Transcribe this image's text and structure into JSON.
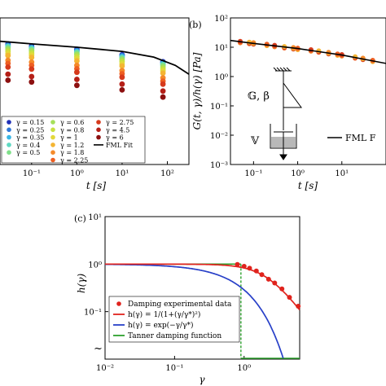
{
  "panels": {
    "a": {
      "xlabel": "t [s]",
      "xticks": [
        "10⁻¹",
        "10⁰",
        "10¹",
        "10²"
      ],
      "legend_col1": [
        "γ = 0.15",
        "γ = 0.25",
        "γ = 0.35",
        "γ = 0.4",
        "γ = 0.5"
      ],
      "legend_col2": [
        "γ = 0.6",
        "γ = 0.8",
        "γ = 1",
        "γ = 1.2",
        "γ = 1.8",
        "γ = 2.25"
      ],
      "legend_col3": [
        "γ = 2.75",
        "γ = 4.5",
        "γ = 6",
        "FML Fit"
      ]
    },
    "b": {
      "label": "(b)",
      "ylabel": "G(t, γ)/h(γ) [Pa]",
      "xlabel": "t [s]",
      "yticks": [
        "10²",
        "10¹",
        "10⁰",
        "10⁻¹",
        "10⁻²",
        "10⁻³"
      ],
      "xticks": [
        "10⁻¹",
        "10⁰",
        "10¹"
      ],
      "spring_label": "𝔾, β",
      "dashpot_label": "𝕍",
      "legend": "FML F"
    },
    "c": {
      "label": "(c)",
      "ylabel": "h(γ)",
      "xlabel": "γ",
      "yticks": [
        "10¹",
        "10⁰",
        "10⁻¹"
      ],
      "xticks": [
        "10⁻²",
        "10⁻¹",
        "10⁰"
      ],
      "legend": [
        "Damping experimental data",
        "h(γ) = 1/(1+(γ/γ*)²)",
        "h(γ) = exp(−γ/γ*)",
        "Tanner damping function"
      ]
    }
  },
  "chart_data": [
    {
      "type": "scatter",
      "panel": "a",
      "xlabel": "t [s]",
      "x_scale": "log",
      "xlim": [
        0.02,
        300
      ],
      "y_scale": "log",
      "ylim": [
        0.001,
        100
      ],
      "legend_placement": "bottom-left",
      "series": [
        {
          "name": "γ = 0.15",
          "color": "#2030b8",
          "x": [
            0.03,
            0.1,
            1,
            10,
            80
          ],
          "y": [
            13,
            11,
            8.5,
            5.5,
            3.2
          ]
        },
        {
          "name": "γ = 0.25",
          "color": "#2f78d8",
          "x": [
            0.03,
            0.1,
            1,
            10,
            80
          ],
          "y": [
            12,
            10,
            7.8,
            5.2,
            3.0
          ]
        },
        {
          "name": "γ = 0.35",
          "color": "#37b6e6",
          "x": [
            0.03,
            0.1,
            1,
            10,
            80
          ],
          "y": [
            11,
            9.5,
            7.2,
            4.8,
            2.8
          ]
        },
        {
          "name": "γ = 0.4",
          "color": "#5fd9c2",
          "x": [
            0.03,
            0.1,
            1,
            10,
            80
          ],
          "y": [
            10.5,
            9,
            6.8,
            4.5,
            2.6
          ]
        },
        {
          "name": "γ = 0.5",
          "color": "#7fe08a",
          "x": [
            0.03,
            0.1,
            1,
            10,
            80
          ],
          "y": [
            9.5,
            8.2,
            6.2,
            4.1,
            2.4
          ]
        },
        {
          "name": "γ = 0.6",
          "color": "#a6e05a",
          "x": [
            0.03,
            0.1,
            1,
            10,
            80
          ],
          "y": [
            8.5,
            7.4,
            5.6,
            3.7,
            2.1
          ]
        },
        {
          "name": "γ = 0.8",
          "color": "#c8e040",
          "x": [
            0.03,
            0.1,
            1,
            10,
            80
          ],
          "y": [
            7.3,
            6.3,
            4.8,
            3.2,
            1.8
          ]
        },
        {
          "name": "γ = 1",
          "color": "#e3d83a",
          "x": [
            0.03,
            0.1,
            1,
            10,
            80
          ],
          "y": [
            6.2,
            5.4,
            4.1,
            2.7,
            1.55
          ]
        },
        {
          "name": "γ = 1.2",
          "color": "#f4b533",
          "x": [
            0.03,
            0.1,
            1,
            10,
            80
          ],
          "y": [
            5.2,
            4.5,
            3.4,
            2.3,
            1.3
          ]
        },
        {
          "name": "γ = 1.8",
          "color": "#f58a2a",
          "x": [
            0.03,
            0.1,
            1,
            10,
            80
          ],
          "y": [
            3.6,
            3.1,
            2.4,
            1.6,
            0.9
          ]
        },
        {
          "name": "γ = 2.25",
          "color": "#ee5f22",
          "x": [
            0.03,
            0.1,
            1,
            10,
            80
          ],
          "y": [
            2.8,
            2.4,
            1.85,
            1.25,
            0.7
          ]
        },
        {
          "name": "γ = 2.75",
          "color": "#d63a1c",
          "x": [
            0.03,
            0.1,
            1,
            10,
            80
          ],
          "y": [
            2.1,
            1.8,
            1.4,
            0.95,
            0.55
          ]
        },
        {
          "name": "γ = 4.5",
          "color": "#b51f17",
          "x": [
            0.03,
            0.1,
            1,
            10,
            80
          ],
          "y": [
            1.2,
            1.0,
            0.8,
            0.55,
            0.32
          ]
        },
        {
          "name": "γ = 6",
          "color": "#8c1010",
          "x": [
            0.03,
            0.1,
            1,
            10,
            80
          ],
          "y": [
            0.75,
            0.65,
            0.5,
            0.35,
            0.2
          ]
        }
      ],
      "fit": {
        "name": "FML Fit",
        "x": [
          0.02,
          0.1,
          1,
          10,
          50,
          150,
          300
        ],
        "y": [
          16,
          13,
          10,
          7.2,
          4.6,
          2.4,
          1.2
        ]
      }
    },
    {
      "type": "scatter",
      "panel": "b",
      "xlabel": "t [s]",
      "ylabel": "G(t, γ)/h(γ) [Pa]",
      "x_scale": "log",
      "xlim": [
        0.03,
        100
      ],
      "y_scale": "log",
      "ylim": [
        0.001,
        100
      ],
      "points": {
        "x": [
          0.05,
          0.08,
          0.1,
          0.2,
          0.3,
          0.5,
          0.8,
          1,
          2,
          3,
          5,
          8,
          10,
          20,
          30,
          50
        ],
        "y": [
          15,
          14,
          13.5,
          12,
          11,
          10,
          9.2,
          8.8,
          7.8,
          7.1,
          6.3,
          5.6,
          5.3,
          4.5,
          4.0,
          3.4
        ]
      },
      "fit": {
        "name": "FML F",
        "x": [
          0.03,
          0.1,
          1,
          10,
          100
        ],
        "y": [
          17,
          13.5,
          9,
          5.4,
          2.8
        ]
      }
    },
    {
      "type": "line",
      "panel": "c",
      "xlabel": "γ",
      "ylabel": "h(γ)",
      "x_scale": "log",
      "xlim": [
        0.01,
        6.3
      ],
      "y_scale": "log",
      "ylim": [
        0.01,
        10
      ],
      "legend_placement": "bottom-left",
      "series": [
        {
          "name": "Damping experimental data",
          "kind": "points",
          "color": "#e0231d",
          "x": [
            0.8,
            1.0,
            1.2,
            1.5,
            1.8,
            2.25,
            2.75,
            3.5,
            4.5,
            6
          ],
          "y": [
            0.98,
            0.9,
            0.82,
            0.72,
            0.6,
            0.48,
            0.4,
            0.3,
            0.2,
            0.13
          ]
        },
        {
          "name": "h(γ) = 1/(1+(γ/γ*)²)",
          "kind": "line",
          "color": "#e0231d",
          "gamma_star": 2.2
        },
        {
          "name": "h(γ) = exp(−γ/γ*)",
          "kind": "line",
          "color": "#2840c8",
          "gamma_star": 0.8
        },
        {
          "name": "Tanner damping function",
          "kind": "step",
          "color": "#2ca02c",
          "step_at": 0.9
        }
      ]
    }
  ]
}
